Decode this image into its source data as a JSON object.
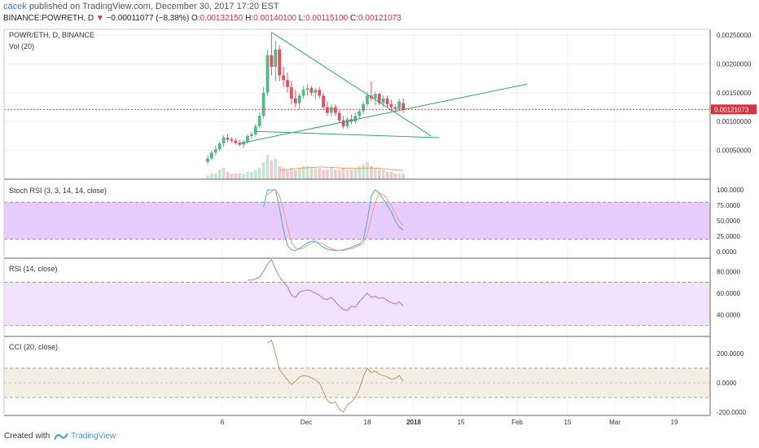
{
  "header": {
    "publisher": "cacek",
    "published_text": "published on TradingView.com, December 30, 2017 17:20 EST",
    "symbol_line": "BINANCE:POWRETH, D",
    "change_arrow": "▼",
    "change_text": "−0.00011077 (−8.38%)",
    "o_label": "O:",
    "o_value": "0.00132150",
    "h_label": "H:",
    "h_value": "0.00140100",
    "l_label": "L:",
    "l_value": "0.00115100",
    "c_label": "C:",
    "c_value": "0.00121073"
  },
  "footer": {
    "created_with": "Created with",
    "brand": "TradingView"
  },
  "colors": {
    "up": "#53b987",
    "down": "#eb4d5c",
    "trendline": "#30a57d",
    "stoch_band": "#e6ccff",
    "rsi_band": "#f1e2ff",
    "cci_band": "#f4efe4",
    "price_line": "#d5333f"
  },
  "chart_data": {
    "type": "candlestick",
    "title": "POWR/ETH, D, BINANCE",
    "volume_label": "Vol (20)",
    "price_axis": {
      "ticks": [
        "0.00250000",
        "0.00200000",
        "0.00150000",
        "0.00100000",
        "0.00050000"
      ],
      "range": [
        0.0,
        0.0026
      ]
    },
    "last_price": "0.00121073",
    "x_axis": {
      "ticks": [
        "6",
        "Dec",
        "18",
        "2018",
        "15",
        "Feb",
        "15",
        "Mar",
        "19"
      ]
    },
    "candles": [
      [
        0.0003,
        0.00042,
        0.00026,
        0.00036
      ],
      [
        0.00036,
        0.0005,
        0.00033,
        0.00046
      ],
      [
        0.00046,
        0.00058,
        0.00041,
        0.00052
      ],
      [
        0.00052,
        0.00066,
        0.00048,
        0.00062
      ],
      [
        0.00062,
        0.00076,
        0.00057,
        0.00072
      ],
      [
        0.00072,
        0.00078,
        0.00065,
        0.00069
      ],
      [
        0.00069,
        0.00073,
        0.00064,
        0.00067
      ],
      [
        0.00067,
        0.00071,
        0.0006,
        0.00063
      ],
      [
        0.00063,
        0.00068,
        0.00057,
        0.0006
      ],
      [
        0.0006,
        0.00068,
        0.00054,
        0.00065
      ],
      [
        0.00065,
        0.00078,
        0.00061,
        0.00075
      ],
      [
        0.00075,
        0.00082,
        0.0007,
        0.00078
      ],
      [
        0.00078,
        0.00096,
        0.00074,
        0.00092
      ],
      [
        0.00092,
        0.00115,
        0.00088,
        0.0011
      ],
      [
        0.0011,
        0.0016,
        0.00105,
        0.0015
      ],
      [
        0.0015,
        0.00225,
        0.00145,
        0.00215
      ],
      [
        0.00215,
        0.00255,
        0.0018,
        0.00195
      ],
      [
        0.00195,
        0.0024,
        0.0017,
        0.00225
      ],
      [
        0.00225,
        0.00232,
        0.0017,
        0.0018
      ],
      [
        0.0018,
        0.00195,
        0.0016,
        0.00172
      ],
      [
        0.00172,
        0.00185,
        0.0015,
        0.0016
      ],
      [
        0.0016,
        0.0017,
        0.0013,
        0.0014
      ],
      [
        0.0014,
        0.00155,
        0.00125,
        0.00132
      ],
      [
        0.00132,
        0.0015,
        0.0012,
        0.00145
      ],
      [
        0.00145,
        0.00162,
        0.0014,
        0.00155
      ],
      [
        0.00155,
        0.00165,
        0.00145,
        0.00158
      ],
      [
        0.00158,
        0.00162,
        0.00145,
        0.0015
      ],
      [
        0.0015,
        0.00158,
        0.00138,
        0.00155
      ],
      [
        0.00155,
        0.0016,
        0.0014,
        0.00145
      ],
      [
        0.00145,
        0.0015,
        0.0012,
        0.00125
      ],
      [
        0.00125,
        0.00135,
        0.0011,
        0.00115
      ],
      [
        0.00115,
        0.0013,
        0.00108,
        0.00125
      ],
      [
        0.00125,
        0.0013,
        0.0011,
        0.00115
      ],
      [
        0.00115,
        0.0012,
        0.00098,
        0.00102
      ],
      [
        0.00102,
        0.0011,
        0.00088,
        0.00092
      ],
      [
        0.00092,
        0.00108,
        0.00088,
        0.00104
      ],
      [
        0.00104,
        0.00112,
        0.00095,
        0.001
      ],
      [
        0.001,
        0.00115,
        0.00096,
        0.0011
      ],
      [
        0.0011,
        0.00122,
        0.00105,
        0.00118
      ],
      [
        0.00118,
        0.00135,
        0.00112,
        0.0013
      ],
      [
        0.0013,
        0.00152,
        0.00125,
        0.00145
      ],
      [
        0.00145,
        0.0017,
        0.00135,
        0.0014
      ],
      [
        0.0014,
        0.00152,
        0.00128,
        0.00148
      ],
      [
        0.00148,
        0.0015,
        0.00128,
        0.00132
      ],
      [
        0.00132,
        0.00145,
        0.00125,
        0.0014
      ],
      [
        0.0014,
        0.00145,
        0.00125,
        0.0013
      ],
      [
        0.0013,
        0.00138,
        0.00118,
        0.00125
      ],
      [
        0.00125,
        0.0013,
        0.00115,
        0.00122
      ],
      [
        0.00122,
        0.0014,
        0.00118,
        0.00135
      ],
      [
        0.00132,
        0.0014,
        0.00115,
        0.00121
      ]
    ],
    "volume": [
      2,
      3,
      3,
      5,
      6,
      4,
      3,
      3,
      3,
      3,
      4,
      4,
      5,
      6,
      9,
      13,
      10,
      11,
      7,
      6,
      5,
      6,
      5,
      6,
      7,
      7,
      6,
      6,
      6,
      5,
      5,
      6,
      5,
      5,
      6,
      5,
      5,
      6,
      7,
      8,
      9,
      7,
      6,
      5,
      5,
      4,
      4,
      3,
      3,
      3
    ],
    "volume_ma": [
      null,
      null,
      null,
      null,
      null,
      null,
      null,
      null,
      null,
      null,
      null,
      null,
      null,
      null,
      null,
      null,
      null,
      null,
      4.8,
      5.0,
      5.2,
      5.4,
      5.6,
      5.8,
      6.0,
      6.2,
      6.3,
      6.4,
      6.5,
      6.5,
      6.4,
      6.3,
      6.2,
      6.0,
      5.9,
      5.8,
      5.8,
      5.7,
      5.7,
      5.8,
      5.9,
      6.0,
      5.9,
      5.8,
      5.6,
      5.4,
      5.2,
      5.0,
      4.8,
      4.6
    ],
    "trendlines": [
      {
        "from": [
          16,
          0.00255
        ],
        "to": [
          56,
          0.00075
        ]
      },
      {
        "from": [
          8,
          0.00062
        ],
        "to": [
          80,
          0.00165
        ]
      },
      {
        "from": [
          12,
          0.00083
        ],
        "to": [
          58,
          0.00072
        ]
      }
    ],
    "stoch_rsi": {
      "label": "Stoch RSI (3, 3, 14, 14, close)",
      "ticks": [
        "100.0000",
        "75.0000",
        "50.0000",
        "25.0000",
        "0.0000"
      ],
      "band": [
        20,
        80
      ],
      "k": [
        null,
        null,
        null,
        null,
        null,
        null,
        null,
        null,
        null,
        null,
        null,
        null,
        null,
        null,
        72,
        100,
        100,
        100,
        70,
        35,
        10,
        3,
        2,
        5,
        10,
        14,
        17,
        17,
        12,
        7,
        4,
        3,
        2,
        2,
        3,
        5,
        7,
        10,
        12,
        20,
        50,
        90,
        100,
        95,
        85,
        75,
        65,
        50,
        40,
        35
      ],
      "d": [
        null,
        null,
        null,
        null,
        null,
        null,
        null,
        null,
        null,
        null,
        null,
        null,
        null,
        null,
        null,
        92,
        98,
        100,
        90,
        68,
        40,
        15,
        6,
        4,
        6,
        10,
        14,
        16,
        15,
        12,
        8,
        5,
        3,
        2,
        2,
        4,
        5,
        7,
        10,
        14,
        28,
        55,
        80,
        95,
        92,
        85,
        75,
        62,
        50,
        42
      ]
    },
    "rsi": {
      "label": "RSI (14, close)",
      "ticks": [
        "80.0000",
        "60.0000",
        "40.0000"
      ],
      "band": [
        30,
        70
      ],
      "values": [
        null,
        null,
        null,
        null,
        null,
        null,
        null,
        null,
        null,
        null,
        72,
        72,
        73,
        75,
        80,
        87,
        91,
        82,
        75,
        70,
        66,
        58,
        56,
        61,
        62,
        63,
        62,
        60,
        58,
        55,
        54,
        56,
        52,
        48,
        45,
        44,
        48,
        47,
        52,
        56,
        60,
        56,
        57,
        55,
        56,
        53,
        51,
        50,
        52,
        48
      ]
    },
    "cci": {
      "label": "CCI (20, close)",
      "ticks": [
        "200.0000",
        "0.0000",
        "-200.0000"
      ],
      "band": [
        -100,
        100
      ],
      "values": [
        null,
        null,
        null,
        null,
        null,
        null,
        null,
        null,
        null,
        null,
        null,
        null,
        null,
        null,
        null,
        270,
        290,
        200,
        90,
        55,
        20,
        -10,
        10,
        40,
        50,
        45,
        35,
        20,
        0,
        -60,
        -120,
        -140,
        -130,
        -180,
        -200,
        -150,
        -130,
        -100,
        -40,
        40,
        100,
        70,
        80,
        60,
        50,
        40,
        25,
        30,
        50,
        10
      ]
    }
  }
}
